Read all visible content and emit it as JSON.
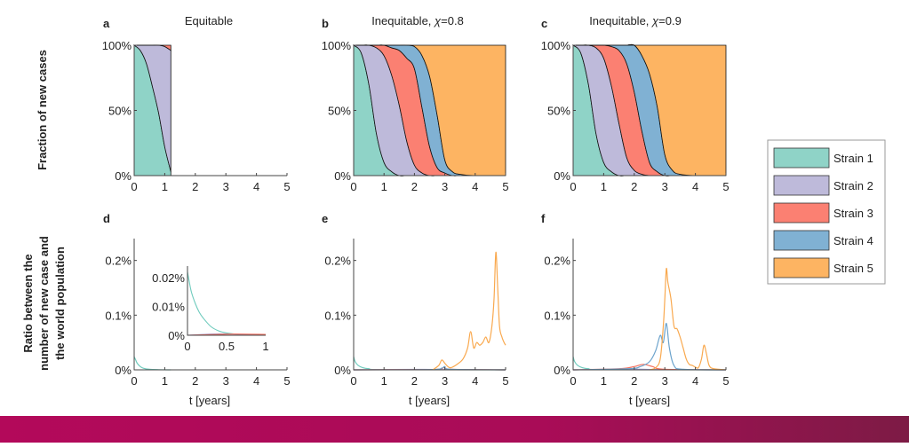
{
  "chart_data": [
    {
      "panel": "a",
      "type": "area",
      "title": "Equitable",
      "stacked": true,
      "xlabel": "",
      "xlim": [
        0,
        5
      ],
      "ylim": [
        0,
        100
      ],
      "xticks": [
        "0",
        "1",
        "2",
        "3",
        "4",
        "5"
      ],
      "yticks": [
        "0%",
        "50%",
        "100%"
      ],
      "x": [
        0,
        0.2,
        0.4,
        0.6,
        0.8,
        1.0,
        1.2
      ],
      "series": [
        {
          "name": "Strain 1",
          "values": [
            100,
            96,
            86,
            68,
            48,
            22,
            3
          ]
        },
        {
          "name": "Strain 2",
          "values": [
            0,
            4,
            14,
            32,
            52,
            77,
            93
          ]
        },
        {
          "name": "Strain 3",
          "values": [
            0,
            0,
            0,
            0,
            0,
            1,
            4
          ]
        }
      ]
    },
    {
      "panel": "b",
      "type": "area",
      "title_prefix": "Inequitable, ",
      "chi_symbol": "χ",
      "chi_value": "=0.8",
      "stacked": true,
      "xlabel": "",
      "xlim": [
        0,
        5
      ],
      "ylim": [
        0,
        100
      ],
      "xticks": [
        "0",
        "1",
        "2",
        "3",
        "4",
        "5"
      ],
      "yticks": [
        "0%",
        "50%",
        "100%"
      ],
      "x": [
        0,
        0.25,
        0.5,
        0.75,
        1.0,
        1.25,
        1.5,
        1.75,
        2.0,
        2.25,
        2.5,
        2.75,
        3.0,
        3.25,
        3.5,
        4.0,
        5.0
      ],
      "series": [
        {
          "name": "Strain 1",
          "values": [
            100,
            94,
            70,
            32,
            10,
            3,
            0,
            0,
            0,
            0,
            0,
            0,
            0,
            0,
            0,
            0,
            0
          ]
        },
        {
          "name": "Strain 2",
          "values": [
            0,
            6,
            30,
            66,
            82,
            74,
            54,
            26,
            8,
            2,
            0,
            0,
            0,
            0,
            0,
            0,
            0
          ]
        },
        {
          "name": "Strain 3",
          "values": [
            0,
            0,
            0,
            2,
            8,
            21,
            42,
            64,
            74,
            50,
            22,
            6,
            2,
            0,
            0,
            0,
            0
          ]
        },
        {
          "name": "Strain 4",
          "values": [
            0,
            0,
            0,
            0,
            0,
            2,
            4,
            10,
            17,
            40,
            54,
            40,
            10,
            3,
            1,
            0,
            0
          ]
        },
        {
          "name": "Strain 5",
          "values": [
            0,
            0,
            0,
            0,
            0,
            0,
            0,
            0,
            1,
            8,
            24,
            54,
            88,
            97,
            99,
            100,
            100
          ]
        }
      ]
    },
    {
      "panel": "c",
      "type": "area",
      "title_prefix": "Inequitable, ",
      "chi_symbol": "χ",
      "chi_value": "=0.9",
      "stacked": true,
      "xlabel": "",
      "xlim": [
        0,
        5
      ],
      "ylim": [
        0,
        100
      ],
      "xticks": [
        "0",
        "1",
        "2",
        "3",
        "4",
        "5"
      ],
      "yticks": [
        "0%",
        "50%",
        "100%"
      ],
      "x": [
        0,
        0.25,
        0.5,
        0.75,
        1.0,
        1.25,
        1.5,
        1.75,
        2.0,
        2.25,
        2.5,
        2.75,
        3.0,
        3.25,
        3.5,
        4.0,
        5.0
      ],
      "series": [
        {
          "name": "Strain 1",
          "values": [
            100,
            94,
            70,
            32,
            10,
            3,
            0,
            0,
            0,
            0,
            0,
            0,
            0,
            0,
            0,
            0,
            0
          ]
        },
        {
          "name": "Strain 2",
          "values": [
            0,
            6,
            30,
            66,
            80,
            66,
            40,
            14,
            4,
            1,
            0,
            0,
            0,
            0,
            0,
            0,
            0
          ]
        },
        {
          "name": "Strain 3",
          "values": [
            0,
            0,
            0,
            2,
            10,
            30,
            56,
            72,
            60,
            33,
            10,
            3,
            0,
            0,
            0,
            0,
            0
          ]
        },
        {
          "name": "Strain 4",
          "values": [
            0,
            0,
            0,
            0,
            0,
            1,
            4,
            14,
            36,
            58,
            68,
            50,
            16,
            4,
            1,
            0,
            0
          ]
        },
        {
          "name": "Strain 5",
          "values": [
            0,
            0,
            0,
            0,
            0,
            0,
            0,
            0,
            0,
            8,
            22,
            47,
            84,
            96,
            99,
            100,
            100
          ]
        }
      ]
    },
    {
      "panel": "d",
      "type": "line",
      "xlabel": "t [years]",
      "xlim": [
        0,
        5
      ],
      "ylim": [
        0,
        0.24
      ],
      "xticks": [
        "0",
        "1",
        "2",
        "3",
        "4",
        "5"
      ],
      "yticks": [
        "0%",
        "0.1%",
        "0.2%"
      ],
      "series": [
        {
          "name": "Strain 1",
          "x": [
            0,
            0.05,
            0.1,
            0.2,
            0.3,
            0.5,
            0.8,
            1.2
          ],
          "values": [
            0.024,
            0.018,
            0.012,
            0.006,
            0.003,
            0.001,
            0.0003,
            0
          ]
        }
      ],
      "inset": {
        "xlim": [
          0,
          1
        ],
        "ylim": [
          0,
          0.024
        ],
        "xticks": [
          "0",
          "0.5",
          "1"
        ],
        "yticks": [
          "0%",
          "0.01%",
          "0.02%"
        ],
        "series": [
          {
            "name": "Strain 1",
            "x": [
              0,
              0.02,
              0.05,
              0.1,
              0.15,
              0.2,
              0.3,
              0.4,
              0.5,
              0.7,
              1.0
            ],
            "values": [
              0.022,
              0.019,
              0.015,
              0.011,
              0.008,
              0.006,
              0.003,
              0.0015,
              0.0008,
              0.0002,
              0
            ]
          },
          {
            "name": "Strain 2",
            "x": [
              0,
              0.2,
              0.4,
              0.6,
              1.0
            ],
            "values": [
              0,
              0.0003,
              0.0005,
              0.0004,
              0.0002
            ]
          },
          {
            "name": "Strain 3",
            "x": [
              0,
              0.3,
              0.6,
              1.0
            ],
            "values": [
              0,
              0.0002,
              0.0004,
              0.0003
            ]
          }
        ]
      }
    },
    {
      "panel": "e",
      "type": "line",
      "xlabel": "t [years]",
      "xlim": [
        0,
        5
      ],
      "ylim": [
        0,
        0.24
      ],
      "xticks": [
        "0",
        "1",
        "2",
        "3",
        "4",
        "5"
      ],
      "yticks": [
        "0%",
        "0.1%",
        "0.2%"
      ],
      "series": [
        {
          "name": "Strain 1",
          "x": [
            0,
            0.05,
            0.15,
            0.3,
            0.5,
            1.0,
            5.0
          ],
          "values": [
            0.024,
            0.015,
            0.008,
            0.004,
            0.002,
            0.0005,
            0
          ]
        },
        {
          "name": "Strain 2",
          "x": [
            0,
            1,
            2,
            3,
            5
          ],
          "values": [
            0,
            0.0005,
            0.0008,
            0.0005,
            0
          ]
        },
        {
          "name": "Strain 3",
          "x": [
            0,
            2,
            2.8,
            3.0,
            3.2,
            5
          ],
          "values": [
            0,
            0.0005,
            0.001,
            0.005,
            0.001,
            0
          ]
        },
        {
          "name": "Strain 4",
          "x": [
            0,
            2.5,
            2.9,
            3.0,
            3.2,
            5
          ],
          "values": [
            0,
            0.0005,
            0.003,
            0.006,
            0.001,
            0
          ]
        },
        {
          "name": "Strain 5",
          "x": [
            2.6,
            2.8,
            2.9,
            3.0,
            3.1,
            3.2,
            3.4,
            3.6,
            3.75,
            3.85,
            3.95,
            4.05,
            4.15,
            4.25,
            4.35,
            4.45,
            4.55,
            4.62,
            4.68,
            4.74,
            4.8,
            4.88,
            4.95,
            5.0
          ],
          "values": [
            0,
            0.008,
            0.018,
            0.012,
            0.006,
            0.004,
            0.01,
            0.02,
            0.04,
            0.07,
            0.04,
            0.05,
            0.045,
            0.05,
            0.06,
            0.05,
            0.08,
            0.13,
            0.215,
            0.15,
            0.08,
            0.06,
            0.05,
            0.045
          ]
        }
      ]
    },
    {
      "panel": "f",
      "type": "line",
      "xlabel": "t [years]",
      "xlim": [
        0,
        5
      ],
      "ylim": [
        0,
        0.24
      ],
      "xticks": [
        "0",
        "1",
        "2",
        "3",
        "4",
        "5"
      ],
      "yticks": [
        "0%",
        "0.1%",
        "0.2%"
      ],
      "series": [
        {
          "name": "Strain 1",
          "x": [
            0,
            0.05,
            0.15,
            0.3,
            0.5,
            1.0,
            5.0
          ],
          "values": [
            0.024,
            0.015,
            0.008,
            0.004,
            0.002,
            0.0005,
            0
          ]
        },
        {
          "name": "Strain 2",
          "x": [
            0,
            1,
            2,
            3,
            5
          ],
          "values": [
            0,
            0.0008,
            0.0012,
            0.0005,
            0
          ]
        },
        {
          "name": "Strain 3",
          "x": [
            0,
            1.5,
            2.0,
            2.3,
            2.6,
            3.0,
            5
          ],
          "values": [
            0,
            0.002,
            0.006,
            0.01,
            0.006,
            0.001,
            0
          ]
        },
        {
          "name": "Strain 4",
          "x": [
            0,
            1.8,
            2.2,
            2.5,
            2.7,
            2.85,
            2.95,
            3.05,
            3.15,
            3.3,
            3.6,
            5
          ],
          "values": [
            0,
            0.002,
            0.006,
            0.015,
            0.035,
            0.063,
            0.05,
            0.085,
            0.04,
            0.008,
            0.001,
            0
          ]
        },
        {
          "name": "Strain 5",
          "x": [
            2.5,
            2.7,
            2.85,
            2.95,
            3.0,
            3.05,
            3.1,
            3.2,
            3.3,
            3.4,
            3.5,
            3.6,
            3.7,
            3.8,
            3.9,
            4.0,
            4.1,
            4.2,
            4.28,
            4.36,
            4.45,
            4.6,
            5.0
          ],
          "values": [
            0,
            0.004,
            0.02,
            0.08,
            0.13,
            0.185,
            0.16,
            0.13,
            0.08,
            0.075,
            0.06,
            0.04,
            0.02,
            0.01,
            0.008,
            0.005,
            0.004,
            0.02,
            0.045,
            0.03,
            0.008,
            0.002,
            0
          ]
        }
      ]
    }
  ],
  "labels": {
    "ylabel_top": "Fraction of new cases",
    "ylabel_bottom": [
      "Ratio between the",
      "number of new case and",
      "the world population"
    ]
  },
  "legend": [
    {
      "label": "Strain 1",
      "color": "#8fd3c7"
    },
    {
      "label": "Strain 2",
      "color": "#bebada"
    },
    {
      "label": "Strain 3",
      "color": "#fb8072"
    },
    {
      "label": "Strain 4",
      "color": "#80b1d3"
    },
    {
      "label": "Strain 5",
      "color": "#fdb462"
    }
  ],
  "line_colors": {
    "Strain 1": "#6fcbbd",
    "Strain 2": "#a9a3d6",
    "Strain 3": "#f46f5e",
    "Strain 4": "#6ca3cc",
    "Strain 5": "#f9a94f"
  }
}
